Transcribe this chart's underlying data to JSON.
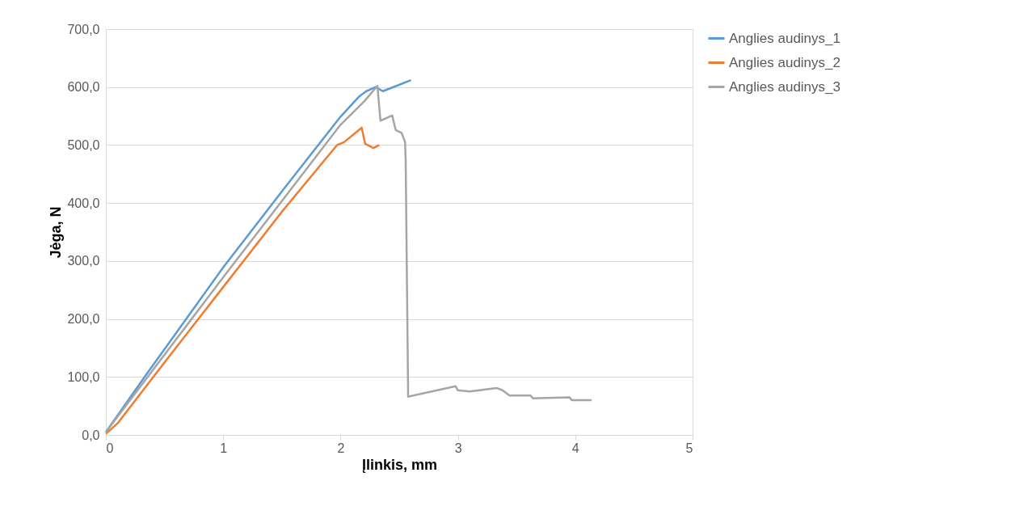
{
  "chart_data": {
    "type": "line",
    "xlabel": "Įlinkis, mm",
    "ylabel": "Jėga, N",
    "xlim": [
      0,
      5
    ],
    "xticks": [
      0,
      1,
      2,
      3,
      4,
      5
    ],
    "ylim": [
      0,
      700
    ],
    "yticks": [
      {
        "value": 0,
        "label": "0,0"
      },
      {
        "value": 100,
        "label": "100,0"
      },
      {
        "value": 200,
        "label": "200,0"
      },
      {
        "value": 300,
        "label": "300,0"
      },
      {
        "value": 400,
        "label": "400,0"
      },
      {
        "value": 500,
        "label": "500,0"
      },
      {
        "value": 600,
        "label": "600,0"
      },
      {
        "value": 700,
        "label": "700,0"
      }
    ],
    "grid": "y",
    "legend": "right",
    "marker": "none",
    "line_style": "solid",
    "series": [
      {
        "name": "Anglies audinys_1",
        "color": "#5b9bd5",
        "x": [
          0,
          0.33,
          1,
          1.5,
          2,
          2.16,
          2.22,
          2.3,
          2.36,
          2.45,
          2.6
        ],
        "values": [
          5,
          100,
          289,
          420,
          549,
          584,
          593,
          600,
          593,
          600,
          612
        ]
      },
      {
        "name": "Anglies audinys_2",
        "color": "#ed7d31",
        "x": [
          0,
          0.1,
          0.5,
          1,
          1.5,
          1.97,
          2.03,
          2.18,
          2.21,
          2.28,
          2.33
        ],
        "values": [
          2,
          20,
          125,
          255,
          385,
          500,
          505,
          530,
          502,
          495,
          500
        ]
      },
      {
        "name": "Anglies audinys_3",
        "color": "#a5a5a5",
        "x": [
          0,
          1,
          2,
          2.2,
          2.314,
          2.34,
          2.44,
          2.47,
          2.52,
          2.55,
          2.555,
          2.576,
          2.98,
          3.0,
          3.1,
          3.33,
          3.38,
          3.44,
          3.62,
          3.64,
          3.95,
          3.97,
          4.14
        ],
        "values": [
          5,
          272,
          535,
          575,
          602,
          542,
          551,
          526,
          521,
          505,
          473,
          66,
          84,
          77,
          75,
          81,
          77,
          68,
          68,
          63,
          65,
          60,
          60
        ]
      }
    ]
  }
}
